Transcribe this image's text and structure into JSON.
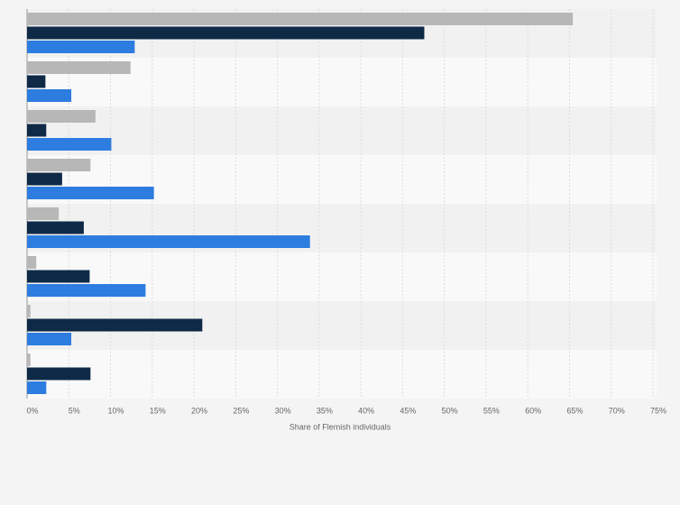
{
  "chart_data": {
    "type": "bar",
    "orientation": "horizontal",
    "x_label": "Share of Flemish individuals",
    "categories": [
      null,
      null,
      null,
      null,
      null,
      null,
      null,
      null
    ],
    "series": [
      {
        "color": "#b7b7b7",
        "values": [
          65.4,
          12.4,
          8.2,
          7.6,
          3.8,
          1.1,
          0.4,
          0.4
        ]
      },
      {
        "color": "#0e2a47",
        "values": [
          47.6,
          2.2,
          2.3,
          4.2,
          6.8,
          7.5,
          21.0,
          7.6
        ]
      },
      {
        "color": "#2d7ce0",
        "values": [
          12.9,
          5.3,
          10.1,
          15.2,
          33.9,
          14.2,
          5.3,
          2.3
        ]
      }
    ],
    "xlim": [
      0,
      75
    ],
    "xticks": [
      {
        "value": 0,
        "label": "0%"
      },
      {
        "value": 5,
        "label": "5%"
      },
      {
        "value": 10,
        "label": "10%"
      },
      {
        "value": 15,
        "label": "15%"
      },
      {
        "value": 20,
        "label": "20%"
      },
      {
        "value": 25,
        "label": "25%"
      },
      {
        "value": 30,
        "label": "30%"
      },
      {
        "value": 35,
        "label": "35%"
      },
      {
        "value": 40,
        "label": "40%"
      },
      {
        "value": 45,
        "label": "45%"
      },
      {
        "value": 50,
        "label": "50%"
      },
      {
        "value": 55,
        "label": "55%"
      },
      {
        "value": 60,
        "label": "60%"
      },
      {
        "value": 65,
        "label": "65%"
      },
      {
        "value": 70,
        "label": "70%"
      },
      {
        "value": 75,
        "label": "75%"
      }
    ],
    "grid": true
  }
}
